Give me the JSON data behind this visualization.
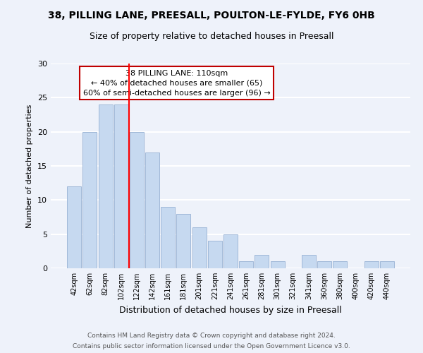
{
  "title": "38, PILLING LANE, PREESALL, POULTON-LE-FYLDE, FY6 0HB",
  "subtitle": "Size of property relative to detached houses in Preesall",
  "xlabel": "Distribution of detached houses by size in Preesall",
  "ylabel": "Number of detached properties",
  "bar_labels": [
    "42sqm",
    "62sqm",
    "82sqm",
    "102sqm",
    "122sqm",
    "142sqm",
    "161sqm",
    "181sqm",
    "201sqm",
    "221sqm",
    "241sqm",
    "261sqm",
    "281sqm",
    "301sqm",
    "321sqm",
    "341sqm",
    "360sqm",
    "380sqm",
    "400sqm",
    "420sqm",
    "440sqm"
  ],
  "bar_values": [
    12,
    20,
    24,
    24,
    20,
    17,
    9,
    8,
    6,
    4,
    5,
    1,
    2,
    1,
    0,
    2,
    1,
    1,
    0,
    1,
    1
  ],
  "bar_color": "#c6d9f0",
  "bar_edge_color": "#a0b8d8",
  "vline_x_index": 3.5,
  "vline_color": "red",
  "annotation_line1": "38 PILLING LANE: 110sqm",
  "annotation_line2": "← 40% of detached houses are smaller (65)",
  "annotation_line3": "60% of semi-detached houses are larger (96) →",
  "annotation_box_color": "white",
  "annotation_box_edge": "#c00000",
  "ylim": [
    0,
    30
  ],
  "yticks": [
    0,
    5,
    10,
    15,
    20,
    25,
    30
  ],
  "footer1": "Contains HM Land Registry data © Crown copyright and database right 2024.",
  "footer2": "Contains public sector information licensed under the Open Government Licence v3.0.",
  "background_color": "#eef2fa",
  "grid_color": "white",
  "title_fontsize": 10,
  "subtitle_fontsize": 9
}
